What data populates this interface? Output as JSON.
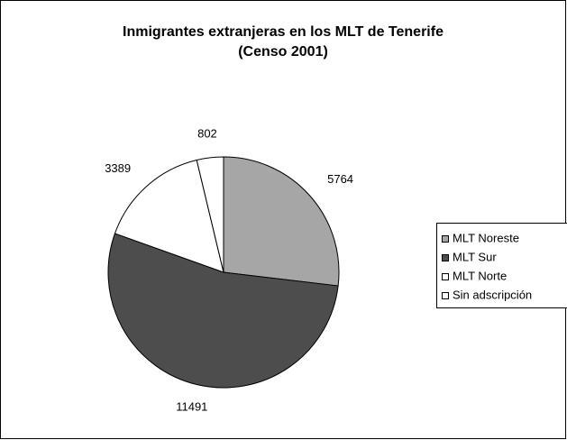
{
  "chart_data": {
    "type": "pie",
    "title": [
      "Inmigrantes extranjeras en los MLT de Tenerife",
      "(Censo 2001)"
    ],
    "categories": [
      "MLT Noreste",
      "MLT Sur",
      "MLT Norte",
      "Sin adscripción"
    ],
    "values": [
      5764,
      11491,
      3389,
      802
    ],
    "colors": [
      "#a6a6a6",
      "#4d4d4d",
      "#ffffff",
      "#ffffff"
    ],
    "legend": "right"
  }
}
